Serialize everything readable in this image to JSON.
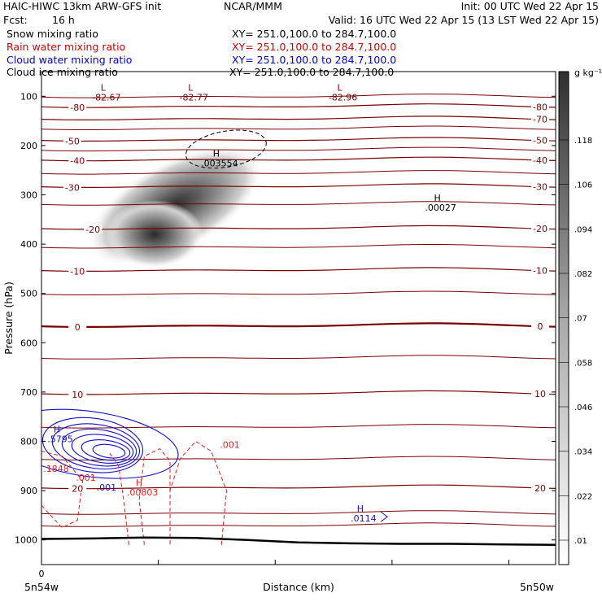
{
  "header": {
    "model": "HAIC-HIWC 13km ARW-GFS init",
    "org": "NCAR/MMM",
    "init": "Init: 00 UTC Wed 22 Apr 15",
    "fcst_label": "Fcst:",
    "fcst_value": "16 h",
    "valid": "Valid: 16 UTC Wed 22 Apr 15 (13 LST Wed 22 Apr 15)"
  },
  "legend": [
    {
      "name": "Snow mixing ratio",
      "xy": "XY= 251.0,100.0 to 284.7,100.0",
      "color": "#000000"
    },
    {
      "name": "Rain water mixing ratio",
      "xy": "XY= 251.0,100.0 to 284.7,100.0",
      "color": "#cc0000"
    },
    {
      "name": "Cloud water mixing ratio",
      "xy": "XY= 251.0,100.0 to 284.7,100.0",
      "color": "#0000cc"
    },
    {
      "name": "Cloud ice mixing ratio",
      "xy": "XY= 251.0,100.0 to 284.7,100.0",
      "color": "#000000"
    }
  ],
  "colors": {
    "temperature": "#7a0000",
    "rain": "#e02020",
    "cloud_water": "#1010cc",
    "ice": "#000000",
    "terrain": "#000000"
  },
  "chart_data": {
    "type": "heatmap",
    "ylabel": "Pressure (hPa)",
    "xlabel": "Distance (km)",
    "ylim": [
      1050,
      50
    ],
    "yticks": [
      100,
      200,
      300,
      400,
      500,
      600,
      700,
      800,
      900,
      1000
    ],
    "xticks": [
      "0"
    ],
    "x_left_label": "5n54w",
    "x_right_label": "5n50w",
    "colorbar": {
      "units": "g kg⁻¹",
      "ticks": [
        ".01",
        ".022",
        ".034",
        ".046",
        ".058",
        ".07",
        ".082",
        ".094",
        ".106",
        ".118"
      ]
    },
    "temperature_contours": [
      {
        "value": -80,
        "p": 120,
        "labels_at": [
          0.07,
          0.97
        ]
      },
      {
        "value": -70,
        "p": 145,
        "labels_at": [
          0.97
        ]
      },
      {
        "value": -50,
        "p": 188,
        "labels_at": [
          0.06,
          0.97
        ]
      },
      {
        "value": -40,
        "p": 228,
        "labels_at": [
          0.07,
          0.97
        ]
      },
      {
        "value": -30,
        "p": 282,
        "labels_at": [
          0.06,
          0.97
        ]
      },
      {
        "value": -20,
        "p": 367,
        "labels_at": [
          0.1,
          0.97
        ]
      },
      {
        "value": -10,
        "p": 452,
        "labels_at": [
          0.07,
          0.97
        ]
      },
      {
        "value": 0,
        "p": 565,
        "labels_at": [
          0.07,
          0.97
        ]
      },
      {
        "value": 10,
        "p": 702,
        "labels_at": [
          0.07,
          0.97
        ]
      },
      {
        "value": 20,
        "p": 893,
        "labels_at": [
          0.07,
          0.97
        ]
      }
    ],
    "temperature_minima": [
      {
        "label": "L",
        "value": "-82.67",
        "x": 0.12,
        "p": 82
      },
      {
        "label": "L",
        "value": "-82.77",
        "x": 0.29,
        "p": 82
      },
      {
        "label": "L",
        "value": "-82.96",
        "x": 0.58,
        "p": 82
      }
    ],
    "annotations": [
      {
        "series": "ice",
        "label": "H",
        "value": ".003554",
        "x": 0.34,
        "p": 232
      },
      {
        "series": "ice",
        "label": "H",
        "value": ".00027",
        "x": 0.77,
        "p": 322
      },
      {
        "series": "cloud_water",
        "label": "H",
        "value": ".5795",
        "x": 0.03,
        "p": 792
      },
      {
        "series": "cloud_water",
        "label": "",
        "value": ".001",
        "x": 0.12,
        "p": 890
      },
      {
        "series": "cloud_water",
        "label": "H",
        "value": ".0114",
        "x": 0.62,
        "p": 953
      },
      {
        "series": "rain",
        "label": "",
        "value": ".001",
        "x": 0.36,
        "p": 803
      },
      {
        "series": "rain",
        "label": "",
        "value": ".001",
        "x": 0.08,
        "p": 870
      },
      {
        "series": "rain",
        "label": "H",
        "value": ".00803",
        "x": 0.19,
        "p": 900
      },
      {
        "series": "rain",
        "label": "",
        "value": ".1848",
        "x": 0.0,
        "p": 852
      }
    ],
    "snow_max": {
      "x": 0.22,
      "p": 380,
      "value": 0.118
    },
    "terrain_p": [
      998,
      997,
      995,
      996,
      1000,
      1005,
      1007,
      1008,
      1008,
      1009,
      1010
    ]
  }
}
